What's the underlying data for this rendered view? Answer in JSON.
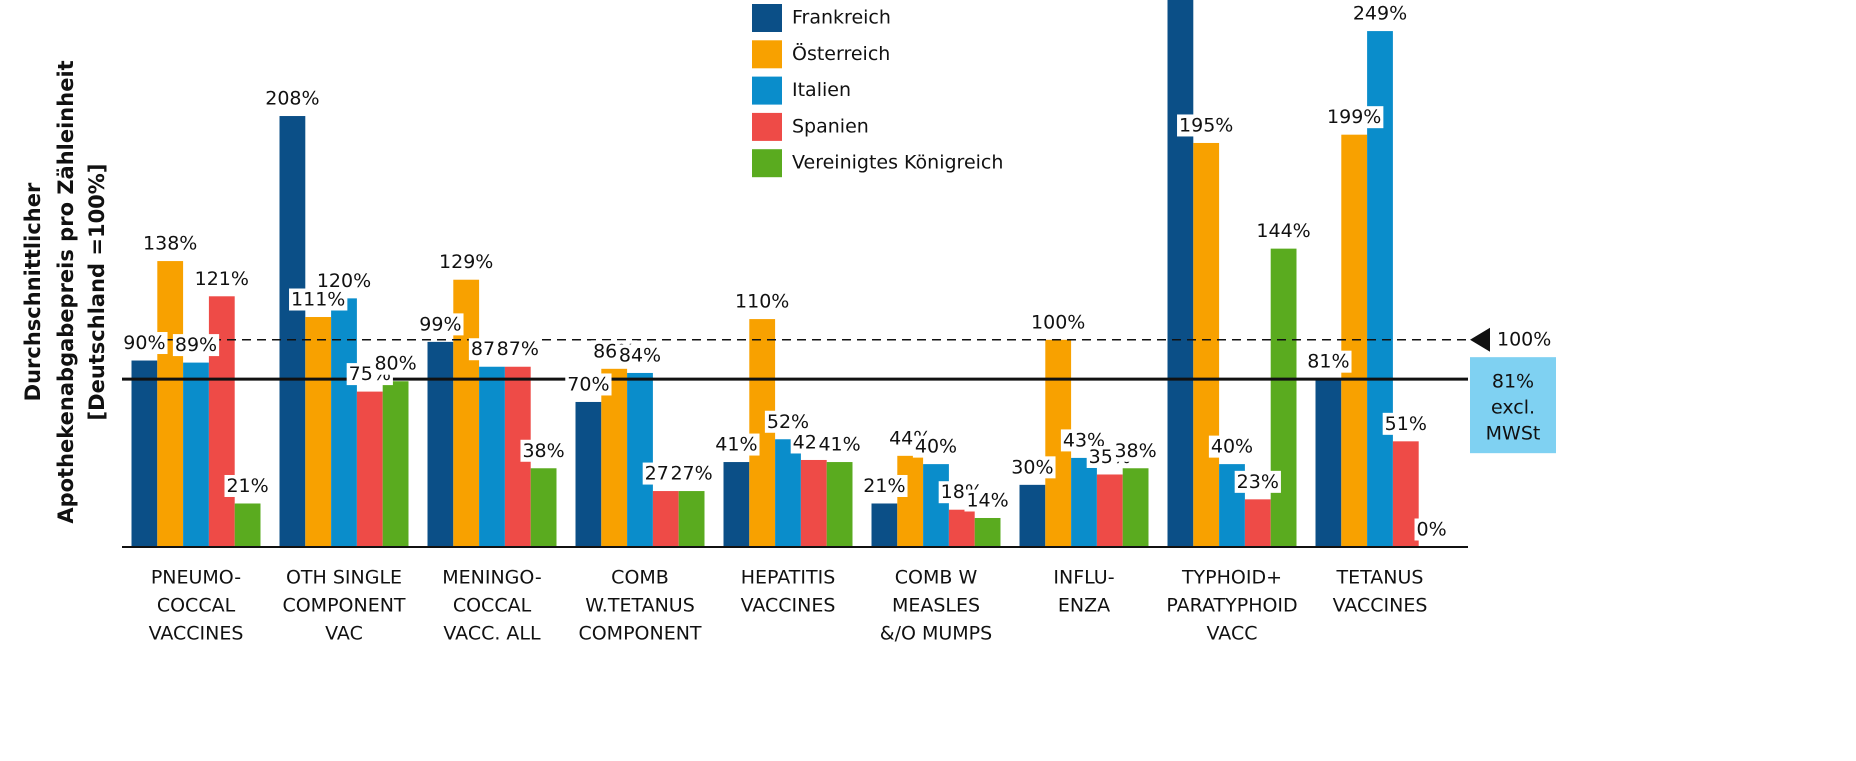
{
  "chart_data": {
    "type": "bar",
    "y_label": [
      "Durchschnittlicher",
      "Apothekenabgabepreis pro Zähleinheit",
      "[Deutschland =100%]"
    ],
    "categories": [
      [
        "PNEUMO-",
        "COCCAL",
        "VACCINES"
      ],
      [
        "OTH SINGLE",
        "COMPONENT",
        "VAC"
      ],
      [
        "MENINGO-",
        "COCCAL",
        "VACC. ALL"
      ],
      [
        "COMB",
        "W.TETANUS",
        "COMPONENT"
      ],
      [
        "HEPATITIS",
        "VACCINES"
      ],
      [
        "COMB W",
        "MEASLES",
        "&/O MUMPS"
      ],
      [
        "INFLU-",
        "ENZA"
      ],
      [
        "TYPHOID+",
        "PARATYPHOID",
        "VACC"
      ],
      [
        "TETANUS",
        "VACCINES"
      ]
    ],
    "series": [
      {
        "name": "Frankreich",
        "color": "#0b4f87",
        "values": [
          90,
          208,
          99,
          70,
          41,
          21,
          30,
          270,
          81
        ],
        "value_labels": [
          "90%",
          "208%",
          "99%",
          "70%",
          "41%",
          "21%",
          "30%",
          null,
          "81%"
        ]
      },
      {
        "name": "Österreich",
        "color": "#f8a100",
        "values": [
          138,
          111,
          129,
          86,
          110,
          44,
          100,
          195,
          199
        ],
        "value_labels": [
          "138%",
          "111%",
          "129%",
          "86%",
          "110%",
          "44%",
          "100%",
          "195%",
          "199%"
        ]
      },
      {
        "name": "Italien",
        "color": "#0a8dcb",
        "values": [
          89,
          120,
          87,
          84,
          52,
          40,
          43,
          40,
          249
        ],
        "value_labels": [
          "89%",
          "120%",
          "87%",
          "84%",
          "52%",
          "40%",
          "43%",
          "40%",
          "249%"
        ]
      },
      {
        "name": "Spanien",
        "color": "#ee4b47",
        "values": [
          121,
          75,
          87,
          27,
          42,
          18,
          35,
          23,
          51
        ],
        "value_labels": [
          "121%",
          "75%",
          "87%",
          "27%",
          "42%",
          "18%",
          "35%",
          "23%",
          "51%"
        ]
      },
      {
        "name": "Vereinigtes Königreich",
        "color": "#5aab1f",
        "values": [
          21,
          80,
          38,
          27,
          41,
          14,
          38,
          144,
          0
        ],
        "value_labels": [
          "21%",
          "80%",
          "38%",
          "27%",
          "41%",
          "14%",
          "38%",
          "144%",
          "0%"
        ]
      }
    ],
    "ylim": [
      0,
      264
    ],
    "reference_lines": [
      {
        "value": 100,
        "style": "dashed",
        "label": [
          "100%"
        ]
      },
      {
        "value": 81,
        "style": "solid",
        "label": [
          "81%",
          "excl.",
          "MWSt"
        ]
      }
    ],
    "legend": "top-center"
  }
}
